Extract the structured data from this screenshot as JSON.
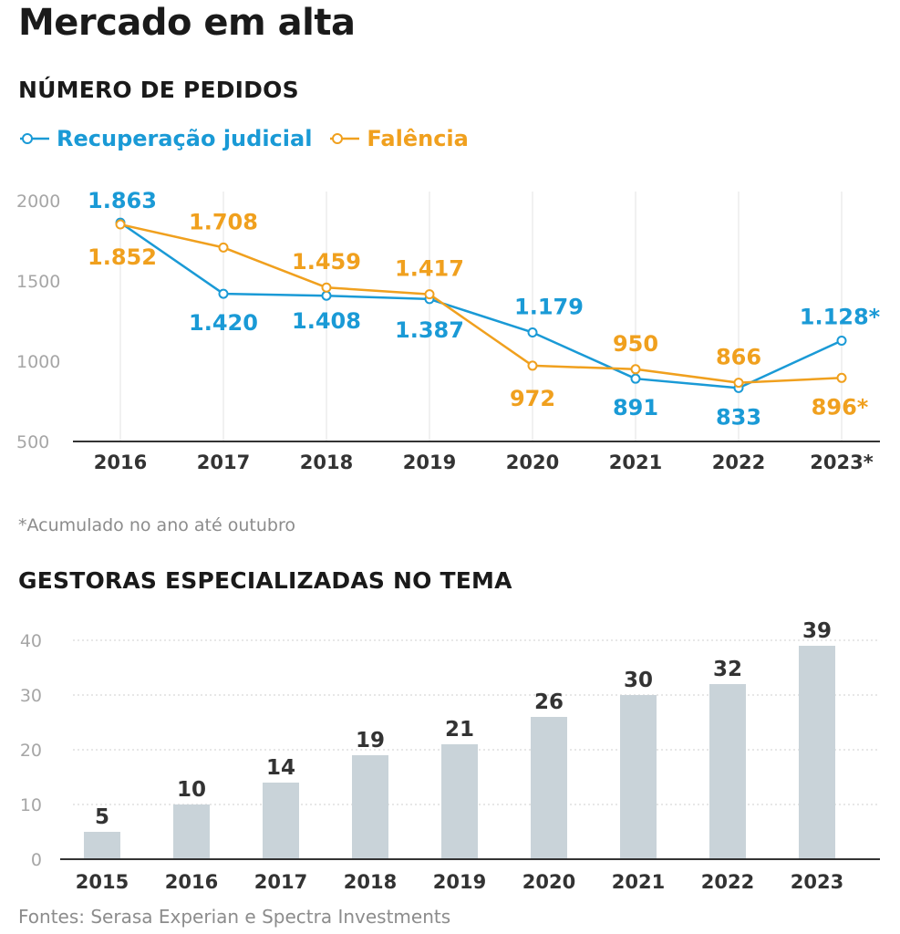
{
  "title": "Mercado em alta",
  "note": "*Acumulado no ano até outubro",
  "source": "Fontes: Serasa Experian e Spectra Investments",
  "colors": {
    "recuperacao": "#1a9ad6",
    "falencia": "#f0a01e",
    "bar": "#c9d3d9",
    "grid": "#e3e3e3",
    "axis": "#333333"
  },
  "chart_data": [
    {
      "type": "line",
      "title": "NÚMERO DE PEDIDOS",
      "x": [
        "2016",
        "2017",
        "2018",
        "2019",
        "2020",
        "2021",
        "2022",
        "2023*"
      ],
      "yticks": [
        "500",
        "1000",
        "1500",
        "2000"
      ],
      "ylim": [
        500,
        2000
      ],
      "legend_position": "top-left",
      "series": [
        {
          "name": "Recuperação judicial",
          "values": [
            1863,
            1420,
            1408,
            1387,
            1179,
            891,
            833,
            1128
          ],
          "labels": [
            "1.863",
            "1.420",
            "1.408",
            "1.387",
            "1.179",
            "891",
            "833",
            "1.128*"
          ]
        },
        {
          "name": "Falência",
          "values": [
            1852,
            1708,
            1459,
            1417,
            972,
            950,
            866,
            896
          ],
          "labels": [
            "1.852",
            "1.708",
            "1.459",
            "1.417",
            "972",
            "950",
            "866",
            "896*"
          ]
        }
      ]
    },
    {
      "type": "bar",
      "title": "GESTORAS ESPECIALIZADAS NO TEMA",
      "categories": [
        "2015",
        "2016",
        "2017",
        "2018",
        "2019",
        "2020",
        "2021",
        "2022",
        "2023"
      ],
      "values": [
        5,
        10,
        14,
        19,
        21,
        26,
        30,
        32,
        39
      ],
      "yticks": [
        "0",
        "10",
        "20",
        "30",
        "40"
      ],
      "ylim": [
        0,
        40
      ]
    }
  ]
}
